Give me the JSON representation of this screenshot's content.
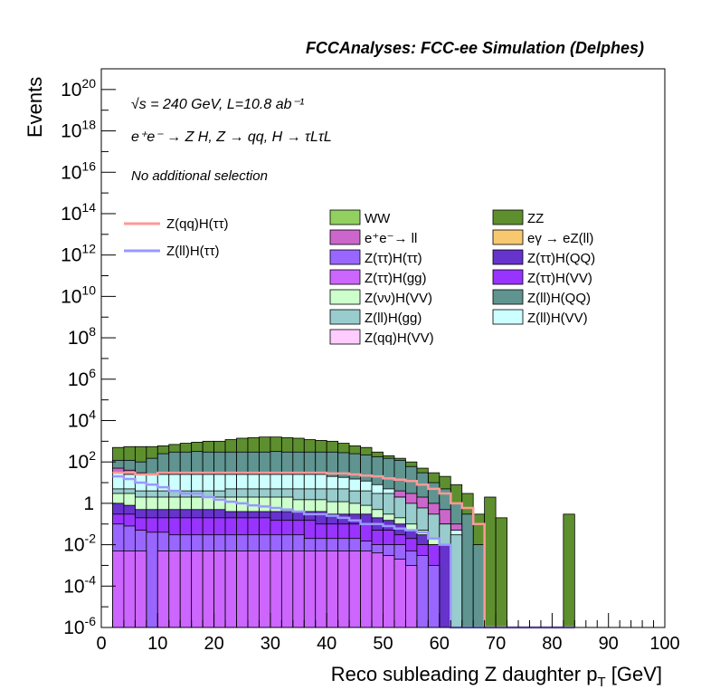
{
  "header": {
    "title": "FCCAnalyses: FCC-ee Simulation (Delphes)"
  },
  "annotations": {
    "energy_lumi": "√s = 240 GeV, L=10.8 ab⁻¹",
    "process": "e⁺e⁻ → Z H, Z → qq, H → τLτL",
    "selection": "No additional selection"
  },
  "legend_lines": [
    {
      "label": "Z(qq)H(ττ)",
      "color": "#ff9999"
    },
    {
      "label": "Z(ll)H(ττ)",
      "color": "#9999ff"
    }
  ],
  "legend_fills": [
    {
      "label": "WW",
      "color": "#92d060"
    },
    {
      "label": "ZZ",
      "color": "#5e8f2e"
    },
    {
      "label": "e⁺e⁻→ ll",
      "color": "#cc66cc"
    },
    {
      "label": "eγ → eZ(ll)",
      "color": "#f8c870"
    },
    {
      "label": "Z(ττ)H(ττ)",
      "color": "#9966ff"
    },
    {
      "label": "Z(ττ)H(QQ)",
      "color": "#6633cc"
    },
    {
      "label": "Z(ττ)H(gg)",
      "color": "#cc66ff"
    },
    {
      "label": "Z(ττ)H(VV)",
      "color": "#9933ff"
    },
    {
      "label": "Z(νν)H(VV)",
      "color": "#ccffcc"
    },
    {
      "label": "Z(ll)H(QQ)",
      "color": "#5f9490"
    },
    {
      "label": "Z(ll)H(gg)",
      "color": "#99cccc"
    },
    {
      "label": "Z(ll)H(VV)",
      "color": "#ccffff"
    },
    {
      "label": "Z(qq)H(VV)",
      "color": "#ffccff"
    }
  ],
  "chart_data": {
    "type": "area",
    "xlabel": "Reco subleading Z daughter p",
    "xlabel_sub": "T",
    "xlabel_unit": "[GeV]",
    "ylabel": "Events",
    "xlim": [
      0,
      100
    ],
    "ylim": [
      1e-06,
      1e+21
    ],
    "log_y": true,
    "x_ticks": [
      0,
      10,
      20,
      30,
      40,
      50,
      60,
      70,
      80,
      90,
      100
    ],
    "y_ticks": [
      {
        "exp": 20
      },
      {
        "exp": 18
      },
      {
        "exp": 16
      },
      {
        "exp": 14
      },
      {
        "exp": 12
      },
      {
        "exp": 10
      },
      {
        "exp": 8
      },
      {
        "exp": 6
      },
      {
        "exp": 4
      },
      {
        "exp": 2
      },
      {
        "exp": 0,
        "text": "1"
      },
      {
        "exp": -2
      },
      {
        "exp": -4
      },
      {
        "exp": -6
      }
    ],
    "bin_edges": [
      2,
      4,
      6,
      8,
      10,
      12,
      14,
      16,
      18,
      20,
      22,
      24,
      26,
      28,
      30,
      32,
      34,
      36,
      38,
      40,
      42,
      44,
      46,
      48,
      50,
      52,
      54,
      56,
      58,
      60,
      62,
      64,
      66,
      68,
      70,
      72,
      74,
      76,
      78,
      80,
      82,
      84
    ],
    "stacked_totals": [
      {
        "name": "ZZ",
        "color": "#5e8f2e",
        "values": [
          500,
          550,
          550,
          550,
          600,
          700,
          800,
          900,
          1000,
          1000,
          1200,
          1400,
          1500,
          1600,
          1600,
          1500,
          1400,
          1200,
          1100,
          1000,
          800,
          600,
          500,
          300,
          200,
          150,
          100,
          50,
          30,
          20,
          8,
          3,
          0.3,
          2,
          0.2,
          1e-06,
          1e-06,
          1e-06,
          1e-06,
          1e-06,
          0.3
        ]
      },
      {
        "name": "Z(ll)H(QQ)",
        "color": "#5f9490",
        "values": [
          120,
          120,
          100,
          150,
          250,
          300,
          300,
          320,
          300,
          300,
          300,
          300,
          300,
          300,
          320,
          300,
          300,
          300,
          300,
          300,
          280,
          250,
          220,
          180,
          150,
          120,
          60,
          30,
          10,
          5,
          1,
          0.3,
          0.01,
          1e-06,
          1e-06,
          1e-06,
          1e-06,
          1e-06,
          1e-06,
          1e-06,
          1e-06
        ]
      },
      {
        "name": "e+e- → ll",
        "color": "#cc66cc",
        "values": [
          50,
          40,
          30,
          20,
          15,
          12,
          10,
          10,
          9,
          8,
          8,
          8,
          8,
          8,
          8,
          8,
          8,
          8,
          8,
          8,
          7,
          6,
          6,
          5,
          4,
          4,
          3,
          2,
          1,
          0.5,
          0.1,
          1e-06,
          1e-06,
          1e-06,
          1e-06,
          1e-06,
          1e-06,
          1e-06,
          1e-06,
          1e-06,
          1e-06
        ]
      },
      {
        "name": "Z(ll)H(VV)",
        "color": "#ccffff",
        "values": [
          30,
          25,
          25,
          25,
          25,
          25,
          25,
          25,
          25,
          25,
          25,
          25,
          25,
          25,
          25,
          25,
          25,
          25,
          25,
          20,
          18,
          15,
          12,
          8,
          5,
          2,
          1,
          0.5,
          0.2,
          0.1,
          0.05,
          1e-06,
          1e-06,
          1e-06,
          1e-06,
          1e-06,
          1e-06,
          1e-06,
          1e-06,
          1e-06,
          1e-06
        ]
      },
      {
        "name": "Z(ll)H(gg)",
        "color": "#99cccc",
        "values": [
          5,
          5,
          4,
          4,
          4,
          4,
          4,
          4,
          4,
          4,
          5,
          5,
          5,
          5,
          5,
          5,
          5,
          5,
          5,
          5,
          5,
          4,
          4,
          3,
          3,
          2,
          1,
          0.6,
          0.3,
          0.1,
          0.03,
          1e-06,
          1e-06,
          1e-06,
          1e-06,
          1e-06,
          1e-06,
          1e-06,
          1e-06,
          1e-06,
          1e-06
        ]
      },
      {
        "name": "Z(νν)H(VV)",
        "color": "#ccffcc",
        "values": [
          3,
          3,
          2,
          2,
          2,
          2,
          2,
          2,
          2,
          2,
          2,
          2,
          2,
          2,
          2,
          2,
          1.5,
          1.5,
          1.5,
          1.2,
          1.2,
          1,
          0.8,
          0.5,
          0.3,
          0.2,
          0.1,
          0.05,
          0.02,
          0.01,
          1e-06,
          1e-06,
          1e-06,
          1e-06,
          1e-06,
          1e-06,
          1e-06,
          1e-06,
          1e-06,
          1e-06,
          1e-06
        ]
      },
      {
        "name": "Z(ττ)H(QQ)",
        "color": "#6633cc",
        "values": [
          1,
          0.8,
          0.5,
          0.5,
          0.5,
          0.5,
          0.5,
          0.5,
          0.5,
          0.5,
          0.4,
          0.4,
          0.4,
          0.4,
          0.4,
          0.4,
          0.4,
          0.4,
          0.4,
          0.3,
          0.3,
          0.3,
          0.3,
          0.2,
          0.15,
          0.1,
          0.05,
          0.03,
          0.01,
          0.01,
          1e-06,
          1e-06,
          1e-06,
          1e-06,
          1e-06,
          1e-06,
          1e-06,
          1e-06,
          1e-06,
          1e-06,
          1e-06
        ]
      },
      {
        "name": "Z(ττ)H(VV)",
        "color": "#9933ff",
        "values": [
          0.3,
          0.3,
          0.2,
          0.2,
          0.2,
          0.2,
          0.2,
          0.2,
          0.2,
          0.2,
          0.2,
          0.2,
          0.2,
          0.2,
          0.15,
          0.15,
          0.15,
          0.15,
          0.1,
          0.1,
          0.1,
          0.1,
          0.1,
          0.05,
          0.05,
          0.03,
          0.02,
          0.01,
          0.01,
          1e-06,
          1e-06,
          1e-06,
          1e-06,
          1e-06,
          1e-06,
          1e-06,
          1e-06,
          1e-06,
          1e-06,
          1e-06,
          1e-06
        ]
      },
      {
        "name": "Z(ττ)H(ττ)",
        "color": "#9966ff",
        "values": [
          0.1,
          0.08,
          0.05,
          0.04,
          0.04,
          0.03,
          0.03,
          0.03,
          0.03,
          0.03,
          0.03,
          0.03,
          0.03,
          0.03,
          0.03,
          0.03,
          0.03,
          0.02,
          0.02,
          0.02,
          0.02,
          0.02,
          0.015,
          0.01,
          0.01,
          0.01,
          0.005,
          0.003,
          0.001,
          1e-06,
          1e-06,
          1e-06,
          1e-06,
          1e-06,
          1e-06,
          1e-06,
          1e-06,
          1e-06,
          1e-06,
          1e-06,
          1e-06
        ]
      },
      {
        "name": "Z(ττ)H(gg)",
        "color": "#cc66ff",
        "values": [
          0.005,
          0.005,
          0.005,
          1e-06,
          0.005,
          0.005,
          0.005,
          0.005,
          0.005,
          0.005,
          0.005,
          0.005,
          0.005,
          0.005,
          0.005,
          0.005,
          0.005,
          0.005,
          0.005,
          0.005,
          0.005,
          0.005,
          0.005,
          0.004,
          0.003,
          0.002,
          0.001,
          1e-06,
          1e-06,
          1e-06,
          1e-06,
          1e-06,
          1e-06,
          1e-06,
          1e-06,
          1e-06,
          1e-06,
          1e-06,
          1e-06,
          1e-06,
          1e-06
        ]
      }
    ],
    "lines": [
      {
        "name": "Z(qq)H(ττ)",
        "color": "#ff9999",
        "values": [
          30,
          30,
          25,
          25,
          30,
          30,
          30,
          30,
          30,
          30,
          30,
          30,
          30,
          30,
          30,
          30,
          30,
          30,
          30,
          28,
          28,
          25,
          22,
          20,
          16,
          14,
          12,
          8,
          5,
          3,
          1,
          0.6,
          0.1,
          1e-06,
          1e-06,
          1e-06,
          1e-06,
          1e-06,
          1e-06,
          1e-06,
          1e-06
        ]
      },
      {
        "name": "Z(ll)H(ττ)",
        "color": "#9999ff",
        "values": [
          20,
          15,
          10,
          8,
          6,
          4,
          3,
          3,
          2,
          1.5,
          1.2,
          1,
          0.8,
          0.7,
          0.6,
          0.5,
          0.4,
          0.3,
          0.3,
          0.25,
          0.2,
          0.15,
          0.1,
          0.1,
          0.08,
          0.06,
          0.05,
          0.04,
          0.02,
          0.01,
          1e-06,
          1e-06,
          1e-06,
          1e-06,
          1e-06,
          1e-06,
          1e-06,
          1e-06,
          1e-06,
          1e-06,
          1e-06
        ]
      }
    ]
  }
}
